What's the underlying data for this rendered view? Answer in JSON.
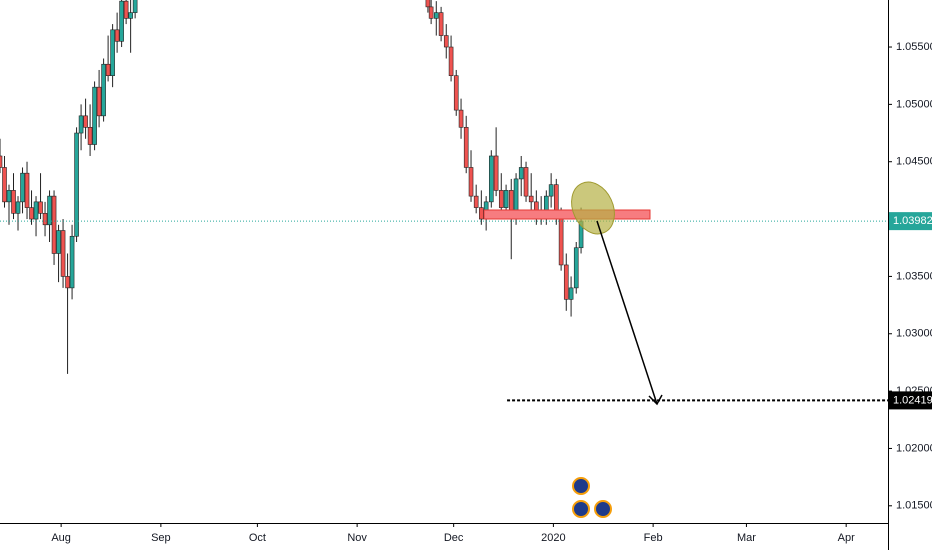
{
  "chart_data": {
    "type": "candlestick",
    "up_color": "#26a69a",
    "down_color": "#ef5350",
    "xlim": [
      -19,
      257
    ],
    "ylim": [
      1.0135,
      1.0591
    ],
    "xticks": [
      {
        "value": 0,
        "label": "Aug"
      },
      {
        "value": 31,
        "label": "Sep"
      },
      {
        "value": 61,
        "label": "Oct"
      },
      {
        "value": 92,
        "label": "Nov"
      },
      {
        "value": 122,
        "label": "Dec"
      },
      {
        "value": 153,
        "label": "2020"
      },
      {
        "value": 184,
        "label": "Feb"
      },
      {
        "value": 213,
        "label": "Mar"
      },
      {
        "value": 244,
        "label": "Apr"
      }
    ],
    "yticks": [
      {
        "value": 1.015,
        "label": "1.01500"
      },
      {
        "value": 1.02,
        "label": "1.02000"
      },
      {
        "value": 1.025,
        "label": "1.02500"
      },
      {
        "value": 1.03,
        "label": "1.03000"
      },
      {
        "value": 1.035,
        "label": "1.03500"
      },
      {
        "value": 1.04,
        "label": "1.04000"
      },
      {
        "value": 1.045,
        "label": "1.04500"
      },
      {
        "value": 1.05,
        "label": "1.05000"
      },
      {
        "value": 1.055,
        "label": "1.05500"
      }
    ],
    "x": [
      -19,
      -17.6,
      -16.2,
      -14.8,
      -13.4,
      -12,
      -10.6,
      -9.2,
      -7.8,
      -6.4,
      -5,
      -3.6,
      -2.2,
      -0.8,
      0.6,
      2,
      3.4,
      4.8,
      6.2,
      7.6,
      9,
      10.4,
      11.8,
      13.2,
      14.6,
      16,
      17.4,
      18.8,
      20.2,
      21.6,
      23,
      114,
      115,
      116.6,
      118.1,
      119.7,
      121.2,
      122.8,
      124.3,
      125.9,
      127.4,
      129,
      130.6,
      132.1,
      133.7,
      135.2,
      136.8,
      138.3,
      139.9,
      141.4,
      143,
      144.5,
      146.1,
      147.7,
      149.2,
      150.8,
      152.3,
      153.9,
      155.4,
      157,
      158.5,
      160.1,
      161.6
    ],
    "open": [
      1.0455,
      1.0445,
      1.0415,
      1.0425,
      1.0405,
      1.0415,
      1.044,
      1.041,
      1.04,
      1.0415,
      1.0405,
      1.0395,
      1.042,
      1.037,
      1.039,
      1.035,
      1.034,
      1.0385,
      1.0475,
      1.049,
      1.048,
      1.0465,
      1.0515,
      1.049,
      1.0535,
      1.0525,
      1.0565,
      1.0555,
      1.059,
      1.0575,
      1.058,
      1.06,
      1.0585,
      1.0575,
      1.058,
      1.056,
      1.055,
      1.0525,
      1.0495,
      1.048,
      1.0445,
      1.042,
      1.041,
      1.04,
      1.0415,
      1.0455,
      1.0425,
      1.041,
      1.0425,
      1.04,
      1.0435,
      1.0445,
      1.042,
      1.0415,
      1.04,
      1.0405,
      1.042,
      1.043,
      1.04,
      1.036,
      1.033,
      1.034,
      1.0375
    ],
    "high": [
      1.047,
      1.0455,
      1.043,
      1.044,
      1.042,
      1.0445,
      1.045,
      1.0425,
      1.042,
      1.044,
      1.0415,
      1.0425,
      1.0425,
      1.0395,
      1.04,
      1.037,
      1.0395,
      1.048,
      1.05,
      1.0505,
      1.05,
      1.052,
      1.053,
      1.054,
      1.056,
      1.057,
      1.058,
      1.0595,
      1.061,
      1.06,
      1.062,
      1.061,
      1.0595,
      1.059,
      1.0585,
      1.057,
      1.056,
      1.053,
      1.0505,
      1.049,
      1.046,
      1.043,
      1.0425,
      1.042,
      1.046,
      1.048,
      1.044,
      1.043,
      1.0435,
      1.044,
      1.0455,
      1.045,
      1.044,
      1.0425,
      1.042,
      1.0425,
      1.044,
      1.0435,
      1.041,
      1.037,
      1.035,
      1.038,
      1.041
    ],
    "low": [
      1.044,
      1.041,
      1.0395,
      1.04,
      1.039,
      1.0405,
      1.04,
      1.0395,
      1.0385,
      1.04,
      1.0385,
      1.038,
      1.036,
      1.0345,
      1.034,
      1.0265,
      1.033,
      1.038,
      1.046,
      1.047,
      1.0455,
      1.046,
      1.048,
      1.0485,
      1.052,
      1.0515,
      1.0545,
      1.055,
      1.057,
      1.0545,
      1.0575,
      1.058,
      1.057,
      1.056,
      1.0555,
      1.054,
      1.052,
      1.049,
      1.047,
      1.044,
      1.0415,
      1.0405,
      1.0395,
      1.039,
      1.041,
      1.042,
      1.0405,
      1.04,
      1.0365,
      1.0395,
      1.042,
      1.0415,
      1.0405,
      1.0395,
      1.0395,
      1.0395,
      1.041,
      1.0395,
      1.0355,
      1.032,
      1.0315,
      1.0335,
      1.037
    ],
    "close": [
      1.0445,
      1.0415,
      1.0425,
      1.0405,
      1.0415,
      1.044,
      1.041,
      1.04,
      1.0415,
      1.0405,
      1.0395,
      1.042,
      1.037,
      1.039,
      1.035,
      1.034,
      1.0385,
      1.0475,
      1.049,
      1.048,
      1.0465,
      1.0515,
      1.049,
      1.0535,
      1.0525,
      1.0565,
      1.0555,
      1.059,
      1.0575,
      1.058,
      1.0615,
      1.0585,
      1.0575,
      1.058,
      1.056,
      1.055,
      1.0525,
      1.0495,
      1.048,
      1.0445,
      1.042,
      1.041,
      1.04,
      1.0415,
      1.0455,
      1.0425,
      1.041,
      1.0425,
      1.04,
      1.0435,
      1.0445,
      1.042,
      1.0415,
      1.04,
      1.0405,
      1.042,
      1.043,
      1.04,
      1.036,
      1.033,
      1.034,
      1.0375,
      1.03982
    ],
    "price_lines": [
      {
        "value": 1.03982,
        "color": "#26a69a",
        "from": -19
      },
      {
        "value": 1.02419,
        "color": "#000000",
        "from": 138.6
      }
    ]
  }
}
